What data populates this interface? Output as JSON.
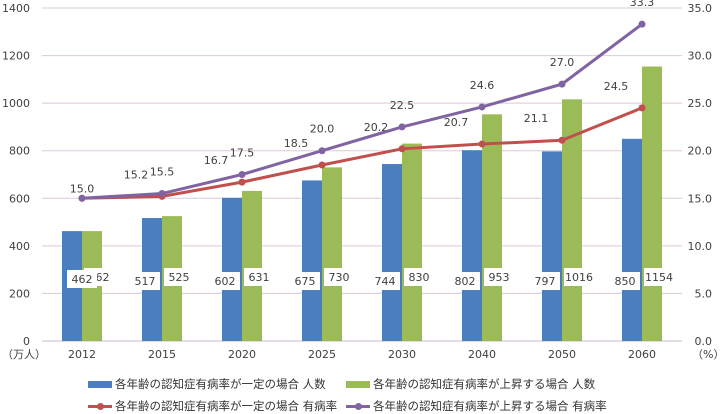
{
  "chart_data": {
    "type": "bar+line",
    "categories": [
      "2012",
      "2015",
      "2020",
      "2025",
      "2030",
      "2040",
      "2050",
      "2060"
    ],
    "left_axis": {
      "unit_label": "（万人）",
      "ylim": [
        0,
        1400
      ],
      "ticks": [
        "0",
        "200",
        "400",
        "600",
        "800",
        "1000",
        "1200",
        "1400"
      ]
    },
    "right_axis": {
      "unit_label": "（%）",
      "ylim": [
        0,
        35
      ],
      "ticks": [
        "0.0",
        "5.0",
        "10.0",
        "15.0",
        "20.0",
        "25.0",
        "30.0",
        "35.0"
      ]
    },
    "grid": true,
    "legend_position": "bottom",
    "series": [
      {
        "name": "各年齢の認知症有病率が一定の場合 人数",
        "type": "bar",
        "axis": "left",
        "color": "#4a7ebf",
        "values": [
          462,
          517,
          602,
          675,
          744,
          802,
          797,
          850
        ]
      },
      {
        "name": "各年齢の認知症有病率が上昇する場合 人数",
        "type": "bar",
        "axis": "left",
        "color": "#9bbb59",
        "values": [
          462,
          525,
          631,
          730,
          830,
          953,
          1016,
          1154
        ]
      },
      {
        "name": "各年齢の認知症有病率が一定の場合 有病率",
        "type": "line",
        "axis": "right",
        "color": "#c0504d",
        "values": [
          15.0,
          15.2,
          16.7,
          18.5,
          20.2,
          20.7,
          21.1,
          24.5
        ]
      },
      {
        "name": "各年齢の認知症有病率が上昇する場合 有病率",
        "type": "line",
        "axis": "right",
        "color": "#8064a2",
        "values": [
          15.0,
          15.5,
          17.5,
          20.0,
          22.5,
          24.6,
          27.0,
          33.3
        ]
      }
    ]
  }
}
